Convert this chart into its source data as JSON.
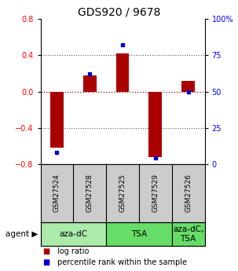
{
  "title": "GDS920 / 9678",
  "samples": [
    "GSM27524",
    "GSM27528",
    "GSM27525",
    "GSM27529",
    "GSM27526"
  ],
  "log_ratios": [
    -0.62,
    0.18,
    0.42,
    -0.72,
    0.12
  ],
  "percentile_ranks": [
    8,
    62,
    82,
    4,
    50
  ],
  "agents": [
    {
      "label": "aza-dC",
      "span": [
        0,
        2
      ],
      "color": "#aaeaaa"
    },
    {
      "label": "TSA",
      "span": [
        2,
        4
      ],
      "color": "#66dd66"
    },
    {
      "label": "aza-dC,\nTSA",
      "span": [
        4,
        5
      ],
      "color": "#66dd66"
    }
  ],
  "ylim": [
    -0.8,
    0.8
  ],
  "yticks_left": [
    -0.8,
    -0.4,
    0.0,
    0.4,
    0.8
  ],
  "yticks_right": [
    0,
    25,
    50,
    75,
    100
  ],
  "bar_color": "#aa0000",
  "dot_color": "#0000cc",
  "plot_bg": "#ffffff",
  "label_bg": "#cccccc",
  "background_color": "#ffffff",
  "label_fontsize": 6.5,
  "title_fontsize": 10,
  "agent_fontsize": 7.5,
  "tick_fontsize": 7,
  "legend_fontsize": 7,
  "bar_width": 0.4
}
